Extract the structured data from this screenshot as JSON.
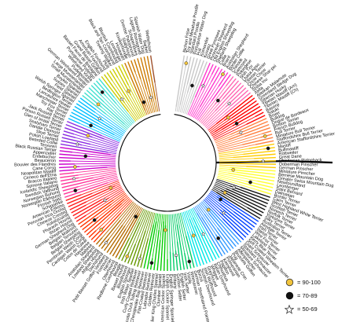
{
  "colors": {
    "background": "#ffffff",
    "root_branch": "#000000",
    "clades": [
      "#c8c8c8",
      "#ff33cc",
      "#ff66b3",
      "#ff0000",
      "#ff8040",
      "#ffcc00",
      "#ffff33",
      "#111111",
      "#0040ff",
      "#3399ff",
      "#00e6e6",
      "#00cc66",
      "#00cc00",
      "#669900",
      "#b36b00",
      "#ff3300",
      "#ff1a1a",
      "#ff3399",
      "#cc00cc",
      "#8a2be2",
      "#00bfff",
      "#40e0d0",
      "#cccc00",
      "#cc7a00",
      "#a0522d",
      "#ff2222"
    ]
  },
  "tree": {
    "leaves": [
      "Bichon Frise",
      "Toy and Miniature Poodle",
      "Standard Poodle",
      "Portuguese Water Dog",
      "Puli",
      "Komondor",
      "Kuvasz",
      "Great Pyrenees",
      "Pyrenean Shepherd",
      "Old English Sheepdog",
      "Shetland Sheepdog",
      "Collie",
      "Briard",
      "Australian Shepherd",
      "Border Collie",
      "Chinook",
      "Samoyed",
      "Pekingese",
      "Shih Tzu",
      "Lhasa Apso",
      "Tibetan Terrier",
      "Chow Chow",
      "Chinese Shar-pei",
      "Shiba Inu",
      "Akita",
      "Alaskan Malamute",
      "Greenland Sledge Dog",
      "Siberian Husky",
      "Tibetan Mastiff (Am)",
      "Tibetan Mastiff (Ch)",
      "Basenji",
      "Saluki",
      "Boxer",
      "Bulldog",
      "Dogue de Bordeaux",
      "Boston Terrier",
      "French Bulldog",
      "Bull Terrier",
      "Miniature Bull Terrier",
      "Staffordshire Bull Terrier",
      "American Staffordshire Terrier",
      "Mastiff",
      "Bullmastiff",
      "Rottweiler",
      "Great Dane",
      "Rhodesian Ridgeback",
      "Doberman Pinscher",
      "German Pinscher",
      "Miniature Pinscher",
      "Bernese Mountain Dog",
      "Greater Swiss Mountain Dog",
      "Newfoundland",
      "Leonberger",
      "Saint Bernard",
      "Dalmatian",
      "Border Terrier",
      "Cairn Terrier",
      "West Highland White Terrier",
      "Scottish Terrier",
      "Norwich Terrier",
      "Norfolk Terrier",
      "Yorkshire Terrier",
      "Silky Terrier",
      "Australian Terrier",
      "Airedale Terrier",
      "Irish Terrier",
      "Welsh Terrier",
      "Wire Fox Terrier",
      "Lakeland Terrier",
      "Kerry Blue Terrier",
      "Soft Coated Wheaten Terrier",
      "Giant Schnauzer",
      "Standard Schnauzer",
      "Miniature Schnauzer",
      "Affenpinscher",
      "Brussels Griffon",
      "Pug",
      "Japanese Chin",
      "Pomeranian",
      "Keeshond",
      "Papillon",
      "Chihuahua",
      "Italian Greyhound",
      "Whippet",
      "Greyhound",
      "Irish Wolfhound",
      "Scottish Deerhound",
      "Borzoi",
      "German Shorthaired Pointer",
      "Weimaraner",
      "Vizsla",
      "Irish Setter",
      "English Setter",
      "Gordon Setter",
      "Brittany",
      "English Springer Spaniel",
      "English Cocker Spaniel",
      "American Cocker Spaniel",
      "Clumber Spaniel",
      "Cavalier King Charles Spaniel",
      "Golden Retriever",
      "Labrador Retriever",
      "Flat-Coated Retriever",
      "Chesapeake Bay Retriever",
      "Nova Scotia Duck Tolling Retriever",
      "Curly Coated Retriever",
      "Irish Water Spaniel",
      "English Springer",
      "Bloodhound",
      "Basset Hound",
      "Beagle",
      "Redbone Coonhound",
      "Otterhound",
      "Harrier",
      "Foxhound",
      "Petit Basset Griffon Vendeen",
      "Dachshund",
      "Afghan Hound",
      "Lowland Sheepdog",
      "Anatolian Shepherd",
      "Maltese",
      "Havanese",
      "Coton de Tulear",
      "Cardigan Welsh Corgi",
      "Pembroke Welsh Corgi",
      "Belgian Sheepdog",
      "Belgian Tervuren",
      "Belgian Malinois",
      "German Shepherd Dog",
      "Ibizan Hound",
      "Pharaoh Hound",
      "Xoloitzcuintli",
      "Chinese Crested",
      "Peruvian Inca Orchid",
      "American Eskimo",
      "Schipperke",
      "Finnish Spitz",
      "Norwegian Elkhound",
      "Norwegian Buhund",
      "Swedish Vallhund",
      "Icelandic Sheepdog",
      "Spinone Italiano",
      "Bracco Italiano",
      "Cirneco dell'Etna",
      "Neapolitan Mastiff",
      "Cane Corso",
      "Bouvier des Flandres",
      "Beauceron",
      "Entlebucher",
      "Appenzeller",
      "Black Russian Terrier",
      "Tervuren",
      "Bearded Collie",
      "Polish Lowland",
      "Skye Terrier",
      "Dandie Dinmont",
      "Sealyham Terrier",
      "Glen of Imaal Terrier",
      "Parson Russell Terrier",
      "Jack Russell Terrier",
      "Rat Terrier",
      "Toy Fox Terrier",
      "Manchester Terrier",
      "Lancashire Heeler",
      "Bedlington Terrier",
      "Welsh Springer Spaniel",
      "Field Spaniel",
      "Sussex Spaniel",
      "Boykin Spaniel",
      "Small Munsterlander",
      "Large Munsterlander",
      "German Wirehaired Pointer",
      "Pudelpointer",
      "Wirehaired Vizsla",
      "Portuguese Podengo",
      "Basset Fauve de Bretagne",
      "Grand Basset Griffon",
      "American Foxhound",
      "English Foxhound",
      "Plott",
      "Treeing Walker",
      "Black and Tan Coonhound",
      "Bluetick Coonhound",
      "Leonberger",
      "Hovawart",
      "Kooikerhondje",
      "Stabyhoun",
      "Drentse Patrijshond",
      "Schapendoes",
      "Lagotto Romagnolo",
      "Spanish Water Dog",
      "Barbet",
      "Wetterhoun"
    ]
  },
  "legend": {
    "items": [
      {
        "label": "= 90-100",
        "marker": "circle",
        "fill": "#f2c43c"
      },
      {
        "label": "= 70-89",
        "marker": "circle",
        "fill": "#111111"
      },
      {
        "label": "= 50-69",
        "marker": "star",
        "fill": "#ffffff"
      }
    ]
  }
}
